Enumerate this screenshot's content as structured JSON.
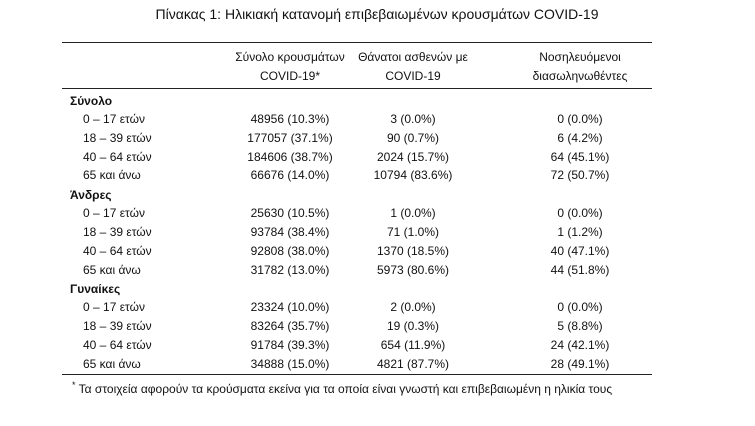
{
  "title": "Πίνακας 1: Ηλικιακή κατανομή επιβεβαιωμένων κρουσμάτων COVID-19",
  "table": {
    "header": [
      [
        "Σύνολο κρουσμάτων",
        "COVID-19*"
      ],
      [
        "Θάνατοι ασθενών με",
        "COVID-19"
      ],
      [
        "Νοσηλευόμενοι",
        "διασωληνωθέντες"
      ]
    ],
    "groups": [
      {
        "name": "Σύνολο",
        "rows": [
          [
            "0 – 17 ετών",
            "48956 (10.3%)",
            "3 (0.0%)",
            "0 (0.0%)"
          ],
          [
            "18 – 39 ετών",
            "177057 (37.1%)",
            "90 (0.7%)",
            "6 (4.2%)"
          ],
          [
            "40 – 64 ετών",
            "184606 (38.7%)",
            "2024 (15.7%)",
            "64 (45.1%)"
          ],
          [
            "65 και άνω",
            "66676 (14.0%)",
            "10794 (83.6%)",
            "72 (50.7%)"
          ]
        ]
      },
      {
        "name": "Άνδρες",
        "rows": [
          [
            "0 – 17 ετών",
            "25630 (10.5%)",
            "1 (0.0%)",
            "0 (0.0%)"
          ],
          [
            "18 – 39 ετών",
            "93784 (38.4%)",
            "71 (1.0%)",
            "1 (1.2%)"
          ],
          [
            "40 – 64 ετών",
            "92808 (38.0%)",
            "1370 (18.5%)",
            "40 (47.1%)"
          ],
          [
            "65 και άνω",
            "31782 (13.0%)",
            "5973 (80.6%)",
            "44 (51.8%)"
          ]
        ]
      },
      {
        "name": "Γυναίκες",
        "rows": [
          [
            "0 – 17 ετών",
            "23324 (10.0%)",
            "2 (0.0%)",
            "0 (0.0%)"
          ],
          [
            "18 – 39 ετών",
            "83264 (35.7%)",
            "19 (0.3%)",
            "5 (8.8%)"
          ],
          [
            "40 – 64 ετών",
            "91784 (39.3%)",
            "654 (11.9%)",
            "24 (42.1%)"
          ],
          [
            "65 και άνω",
            "34888 (15.0%)",
            "4821 (87.7%)",
            "28 (49.1%)"
          ]
        ]
      }
    ]
  },
  "footnote": {
    "mark": "*",
    "text": "Τα στοιχεία αφορούν τα κρούσματα εκείνα για τα οποία είναι γνωστή και επιβεβαιωμένη η ηλικία τους"
  }
}
